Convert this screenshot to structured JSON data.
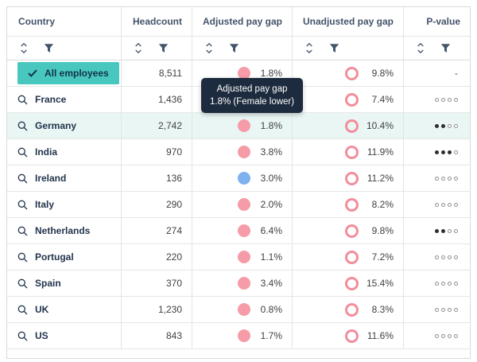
{
  "table": {
    "columns": [
      {
        "label": "Country"
      },
      {
        "label": "Headcount"
      },
      {
        "label": "Adjusted pay gap"
      },
      {
        "label": "Unadjusted pay gap"
      },
      {
        "label": "P-value"
      }
    ],
    "rows": [
      {
        "country": "All employees",
        "selected": true,
        "headcount": "8,511",
        "adjusted": {
          "value": "1.8%",
          "indicator": "filled-pink"
        },
        "unadjusted": {
          "value": "9.8%"
        },
        "pvalue": {
          "dash": "-"
        }
      },
      {
        "country": "France",
        "headcount": "1,436",
        "adjusted": null,
        "unadjusted": {
          "value": "7.4%"
        },
        "pvalue": {
          "filled": 0,
          "total": 4
        }
      },
      {
        "country": "Germany",
        "highlighted": true,
        "headcount": "2,742",
        "adjusted": {
          "value": "1.8%",
          "indicator": "filled-pink"
        },
        "unadjusted": {
          "value": "10.4%"
        },
        "pvalue": {
          "filled": 2,
          "total": 4
        }
      },
      {
        "country": "India",
        "headcount": "970",
        "adjusted": {
          "value": "3.8%",
          "indicator": "filled-pink"
        },
        "unadjusted": {
          "value": "11.9%"
        },
        "pvalue": {
          "filled": 3,
          "total": 4
        }
      },
      {
        "country": "Ireland",
        "headcount": "136",
        "adjusted": {
          "value": "3.0%",
          "indicator": "filled-blue"
        },
        "unadjusted": {
          "value": "11.2%"
        },
        "pvalue": {
          "filled": 0,
          "total": 4
        }
      },
      {
        "country": "Italy",
        "headcount": "290",
        "adjusted": {
          "value": "2.0%",
          "indicator": "filled-pink"
        },
        "unadjusted": {
          "value": "8.2%"
        },
        "pvalue": {
          "filled": 0,
          "total": 4
        }
      },
      {
        "country": "Netherlands",
        "headcount": "274",
        "adjusted": {
          "value": "6.4%",
          "indicator": "filled-pink"
        },
        "unadjusted": {
          "value": "9.8%"
        },
        "pvalue": {
          "filled": 2,
          "total": 4
        }
      },
      {
        "country": "Portugal",
        "headcount": "220",
        "adjusted": {
          "value": "1.1%",
          "indicator": "filled-pink"
        },
        "unadjusted": {
          "value": "7.2%"
        },
        "pvalue": {
          "filled": 0,
          "total": 4
        }
      },
      {
        "country": "Spain",
        "headcount": "370",
        "adjusted": {
          "value": "3.4%",
          "indicator": "filled-pink"
        },
        "unadjusted": {
          "value": "15.4%"
        },
        "pvalue": {
          "filled": 0,
          "total": 4
        }
      },
      {
        "country": "UK",
        "headcount": "1,230",
        "adjusted": {
          "value": "0.8%",
          "indicator": "filled-pink"
        },
        "unadjusted": {
          "value": "8.3%"
        },
        "pvalue": {
          "filled": 0,
          "total": 4
        }
      },
      {
        "country": "US",
        "headcount": "843",
        "adjusted": {
          "value": "1.7%",
          "indicator": "filled-pink"
        },
        "unadjusted": {
          "value": "11.6%"
        },
        "pvalue": {
          "filled": 0,
          "total": 4
        }
      }
    ]
  },
  "tooltip": {
    "line1": "Adjusted pay gap",
    "line2": "1.8% (Female lower)"
  },
  "icons": {
    "sort": "sort-icon",
    "filter": "filter-icon",
    "search": "search-icon",
    "check": "check-icon"
  },
  "colors": {
    "accent_teal": "#47c7bd",
    "gap_pink": "#f59ca8",
    "gap_blue": "#7fb1ef",
    "ring_pink": "#f28d9b",
    "row_highlight": "#e9f6f4",
    "tooltip_bg": "#1d2b3e",
    "header_text": "#44546a",
    "country_text": "#22344c"
  }
}
